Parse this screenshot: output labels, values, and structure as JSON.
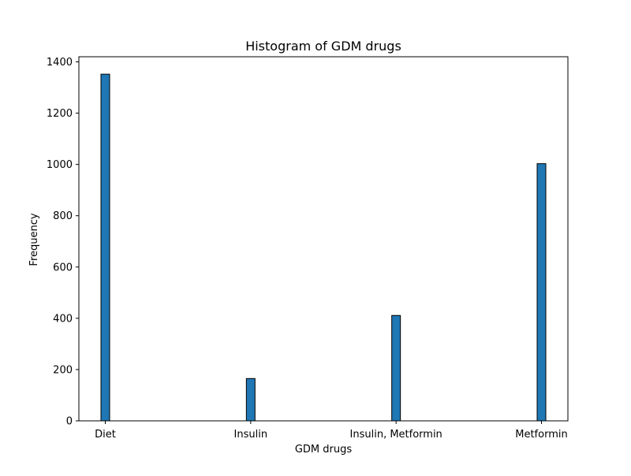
{
  "chart_data": {
    "type": "bar",
    "title": "Histogram of GDM drugs",
    "xlabel": "GDM drugs",
    "ylabel": "Frequency",
    "categories": [
      "Diet",
      "Insulin",
      "Insulin, Metformin",
      "Metformin"
    ],
    "values": [
      1352,
      165,
      411,
      1003
    ],
    "ylim": [
      0,
      1420
    ],
    "yticks": [
      0,
      200,
      400,
      600,
      800,
      1000,
      1200,
      1400
    ],
    "grid": false,
    "legend": "none",
    "bar_color": "#1f77b4",
    "edge_color": "#000000"
  }
}
